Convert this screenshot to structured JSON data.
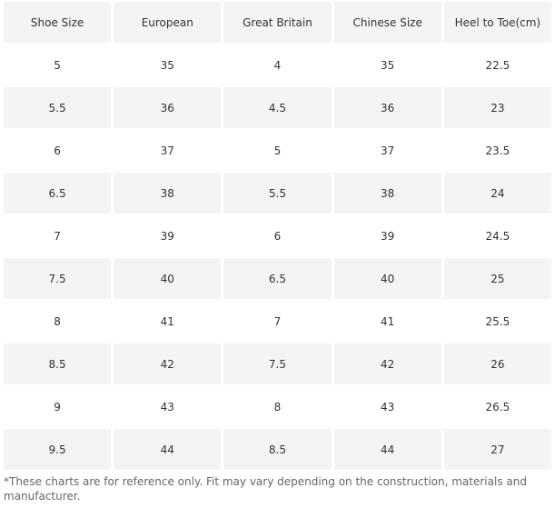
{
  "table": {
    "header": [
      "Shoe Size",
      "European",
      "Great Britain",
      "Chinese Size",
      "Heel to Toe(cm)"
    ],
    "rows": [
      [
        "5",
        "35",
        "4",
        "35",
        "22.5"
      ],
      [
        "5.5",
        "36",
        "4.5",
        "36",
        "23"
      ],
      [
        "6",
        "37",
        "5",
        "37",
        "23.5"
      ],
      [
        "6.5",
        "38",
        "5.5",
        "38",
        "24"
      ],
      [
        "7",
        "39",
        "6",
        "39",
        "24.5"
      ],
      [
        "7.5",
        "40",
        "6.5",
        "40",
        "25"
      ],
      [
        "8",
        "41",
        "7",
        "41",
        "25.5"
      ],
      [
        "8.5",
        "42",
        "7.5",
        "42",
        "26"
      ],
      [
        "9",
        "43",
        "8",
        "43",
        "26.5"
      ],
      [
        "9.5",
        "44",
        "8.5",
        "44",
        "27"
      ]
    ]
  },
  "footnote": "*These charts are for reference only. Fit may vary depending on the construction, materials and manufacturer."
}
